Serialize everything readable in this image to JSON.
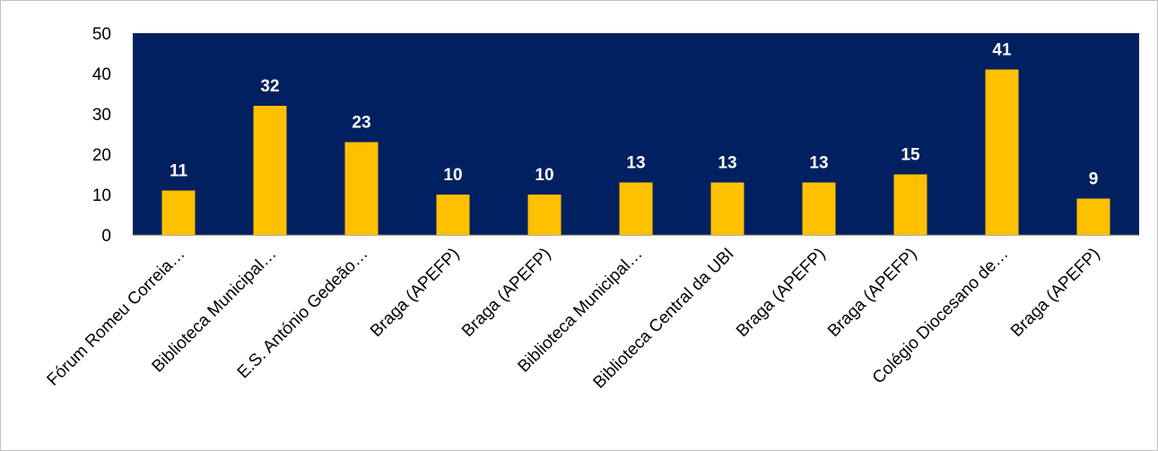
{
  "chart_data": {
    "type": "bar",
    "categories": [
      "Fórum Romeu Correia…",
      "Biblioteca Municipal…",
      "E.S. António Gedeão…",
      "Braga (APEFP)",
      "Braga (APEFP)",
      "Biblioteca Municipal…",
      "Biblioteca Central da UBI",
      "Braga (APEFP)",
      "Braga (APEFP)",
      "Colégio Diocesano de…",
      "Braga (APEFP)"
    ],
    "values": [
      11,
      32,
      23,
      10,
      10,
      13,
      13,
      13,
      15,
      41,
      9
    ],
    "title": "",
    "xlabel": "",
    "ylabel": "",
    "ylim": [
      0,
      50
    ],
    "yticks": [
      0,
      10,
      20,
      30,
      40,
      50
    ],
    "grid": false,
    "legend": "none",
    "data_labels": true
  },
  "colors": {
    "plot_background": "#002060",
    "bar": "#FFC000",
    "value_label": "#FFFFFF",
    "frame_border": "#BFBFBF"
  }
}
